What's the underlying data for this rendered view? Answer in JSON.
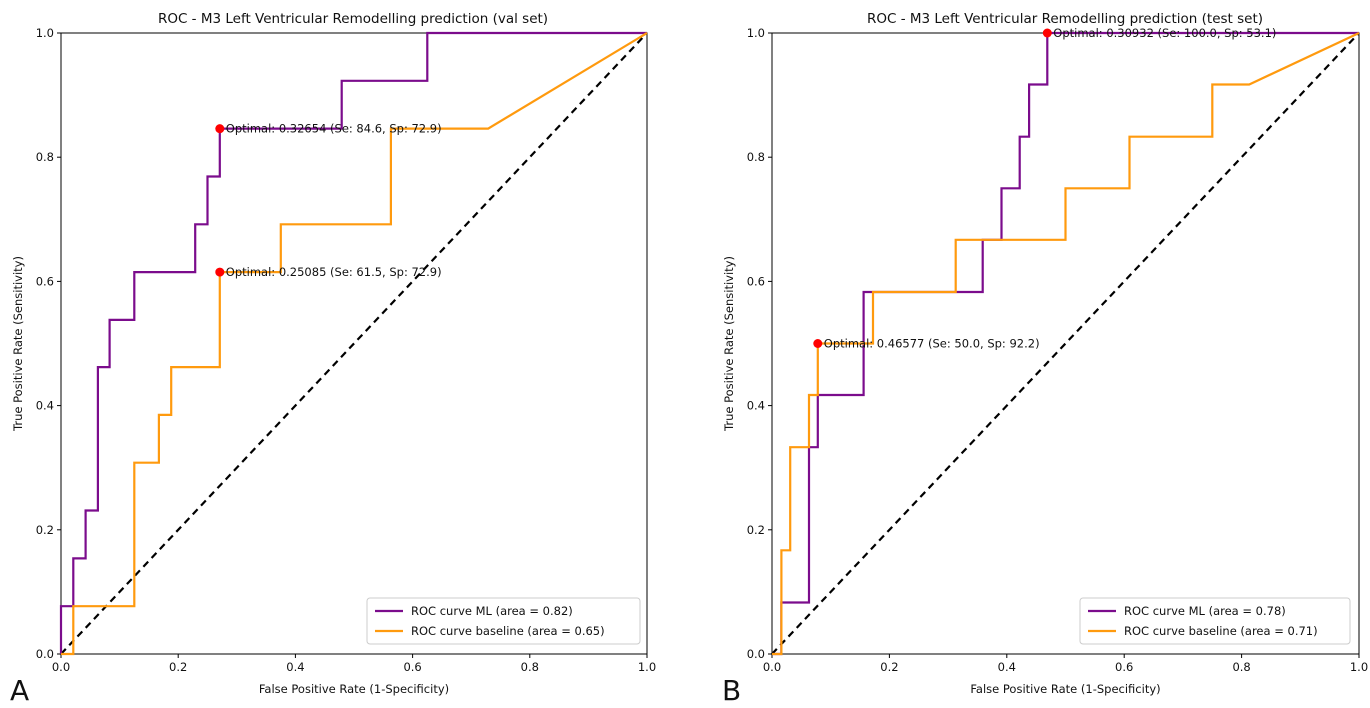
{
  "colors": {
    "ml": "#7b0c8c",
    "baseline": "#ff9a0e",
    "chance": "#000000",
    "optimal": "#ff0000"
  },
  "chart_data": [
    {
      "type": "line",
      "panel_label": "A",
      "title": "ROC - M3 Left Ventricular Remodelling prediction (val set)",
      "xlabel": "False Positive Rate (1-Specificity)",
      "ylabel": "True Positive Rate (Sensitivity)",
      "xlim": [
        0,
        1
      ],
      "ylim": [
        0,
        1
      ],
      "xticks": [
        "0.0",
        "0.2",
        "0.4",
        "0.6",
        "0.8",
        "1.0"
      ],
      "yticks": [
        "0.0",
        "0.2",
        "0.4",
        "0.6",
        "0.8",
        "1.0"
      ],
      "legend_position": "lower right",
      "grid": false,
      "series": [
        {
          "name": "ROC curve ML (area = 0.82)",
          "color_key": "ml",
          "x": [
            0,
            0,
            0.021,
            0.021,
            0.042,
            0.042,
            0.063,
            0.063,
            0.083,
            0.083,
            0.125,
            0.125,
            0.229,
            0.229,
            0.25,
            0.25,
            0.271,
            0.271,
            0.479,
            0.479,
            0.625,
            0.625,
            1.0
          ],
          "y": [
            0,
            0.077,
            0.077,
            0.154,
            0.154,
            0.231,
            0.231,
            0.462,
            0.462,
            0.538,
            0.538,
            0.615,
            0.615,
            0.692,
            0.692,
            0.769,
            0.769,
            0.846,
            0.846,
            0.923,
            0.923,
            1.0,
            1.0
          ]
        },
        {
          "name": "ROC curve baseline (area = 0.65)",
          "color_key": "baseline",
          "x": [
            0,
            0.021,
            0.021,
            0.125,
            0.125,
            0.167,
            0.167,
            0.188,
            0.188,
            0.271,
            0.271,
            0.375,
            0.375,
            0.563,
            0.563,
            0.729,
            1.0
          ],
          "y": [
            0,
            0,
            0.077,
            0.077,
            0.308,
            0.308,
            0.385,
            0.385,
            0.462,
            0.462,
            0.615,
            0.615,
            0.692,
            0.692,
            0.846,
            0.846,
            1.0
          ]
        }
      ],
      "optimal_points": [
        {
          "x": 0.271,
          "y": 0.846,
          "label": "Optimal: 0.32654 (Se: 84.6, Sp: 72.9)"
        },
        {
          "x": 0.271,
          "y": 0.615,
          "label": "Optimal: 0.25085 (Se: 61.5, Sp: 72.9)"
        }
      ]
    },
    {
      "type": "line",
      "panel_label": "B",
      "title": "ROC - M3 Left Ventricular Remodelling prediction (test set)",
      "xlabel": "False Positive Rate (1-Specificity)",
      "ylabel": "True Positive Rate (Sensitivity)",
      "xlim": [
        0,
        1
      ],
      "ylim": [
        0,
        1
      ],
      "xticks": [
        "0.0",
        "0.2",
        "0.4",
        "0.6",
        "0.8",
        "1.0"
      ],
      "yticks": [
        "0.0",
        "0.2",
        "0.4",
        "0.6",
        "0.8",
        "1.0"
      ],
      "legend_position": "lower right",
      "grid": false,
      "series": [
        {
          "name": "ROC curve ML (area = 0.78)",
          "color_key": "ml",
          "x": [
            0,
            0.016,
            0.016,
            0.063,
            0.063,
            0.078,
            0.078,
            0.156,
            0.156,
            0.313,
            0.313,
            0.359,
            0.359,
            0.391,
            0.391,
            0.422,
            0.422,
            0.438,
            0.438,
            0.469,
            0.469,
            1.0
          ],
          "y": [
            0,
            0,
            0.083,
            0.083,
            0.333,
            0.333,
            0.417,
            0.417,
            0.583,
            0.583,
            0.583,
            0.583,
            0.667,
            0.667,
            0.75,
            0.75,
            0.833,
            0.833,
            0.917,
            0.917,
            1.0,
            1.0
          ]
        },
        {
          "name": "ROC curve baseline (area = 0.71)",
          "color_key": "baseline",
          "x": [
            0,
            0.016,
            0.016,
            0.031,
            0.031,
            0.063,
            0.063,
            0.078,
            0.078,
            0.172,
            0.172,
            0.313,
            0.313,
            0.5,
            0.5,
            0.609,
            0.609,
            0.75,
            0.75,
            0.813,
            1.0
          ],
          "y": [
            0,
            0,
            0.167,
            0.167,
            0.333,
            0.333,
            0.417,
            0.417,
            0.5,
            0.5,
            0.583,
            0.583,
            0.667,
            0.667,
            0.75,
            0.75,
            0.833,
            0.833,
            0.917,
            0.917,
            1.0
          ]
        }
      ],
      "optimal_points": [
        {
          "x": 0.469,
          "y": 1.0,
          "label": "Optimal: 0.30932 (Se: 100.0, Sp: 53.1)"
        },
        {
          "x": 0.078,
          "y": 0.5,
          "label": "Optimal: 0.46577 (Se: 50.0, Sp: 92.2)"
        }
      ]
    }
  ]
}
